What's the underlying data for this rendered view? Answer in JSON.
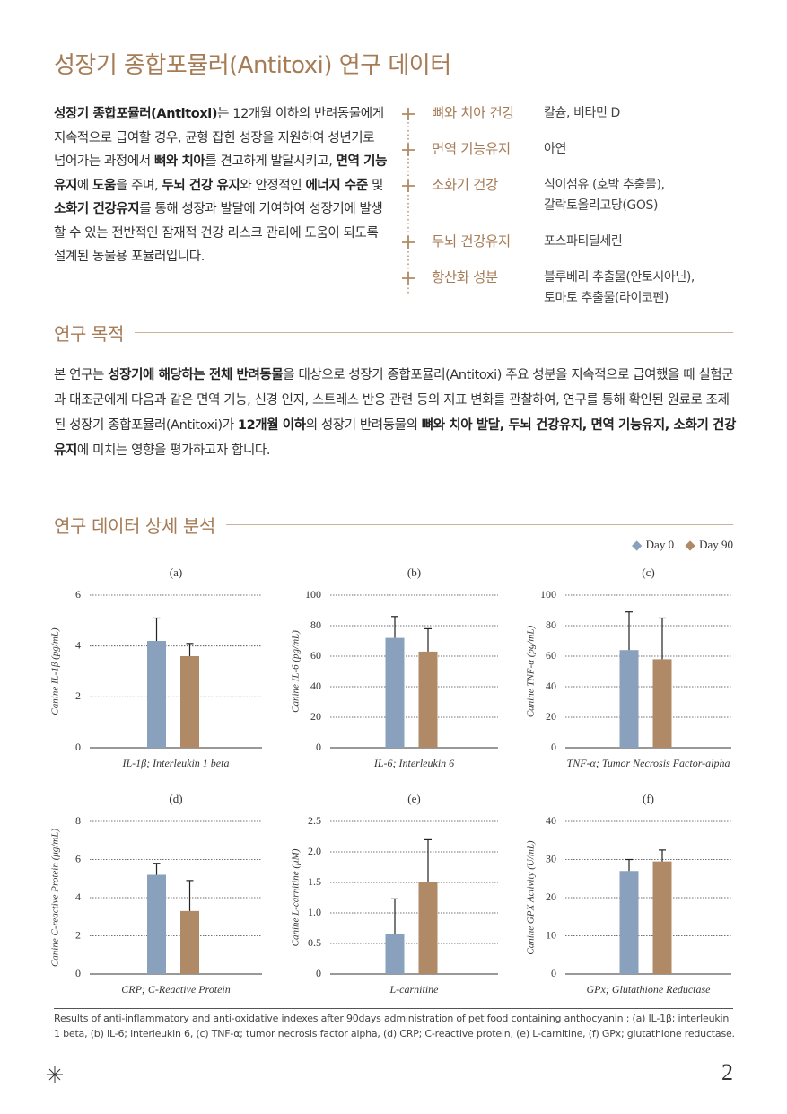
{
  "title": "성장기 종합포뮬러(Antitoxi) 연구 데이터",
  "intro": {
    "runs": [
      {
        "text": "성장기 종합포뮬러(Antitoxi)",
        "bold": true
      },
      {
        "text": "는 12개월 이하의 반려동물에게 지속적으로 급여할 경우, 균형 잡힌 성장을 지원하여 성년기로 넘어가는 과정에서 "
      },
      {
        "text": "뼈와 치아",
        "bold": true
      },
      {
        "text": "를 견고하게 발달시키고, "
      },
      {
        "text": "면역 기능유지",
        "bold": true
      },
      {
        "text": "에 "
      },
      {
        "text": "도움",
        "bold": true
      },
      {
        "text": "을 주며, "
      },
      {
        "text": "두뇌 건강 유지",
        "bold": true
      },
      {
        "text": "와 안정적인 "
      },
      {
        "text": "에너지 수준",
        "bold": true
      },
      {
        "text": " 및 "
      },
      {
        "text": "소화기 건강유지",
        "bold": true
      },
      {
        "text": "를 통해 성장과 발달에 기여하여 성장기에 발생할 수 있는 전반적인 잠재적 건강 리스크 관리에 도움이 되도록 설계된 동물용 포뮬러입니다."
      }
    ]
  },
  "nutrients": [
    {
      "label": "뼈와 치아 건강",
      "lines": [
        "칼슘, 비타민 D"
      ]
    },
    {
      "label": "면역 기능유지",
      "lines": [
        "아연"
      ]
    },
    {
      "label": "소화기 건강",
      "lines": [
        "식이섬유 (호박 추출물),",
        "갈락토올리고당(GOS)"
      ]
    },
    {
      "label": "두뇌 건강유지",
      "lines": [
        "포스파티딜세린"
      ]
    },
    {
      "label": "항산화 성분",
      "lines": [
        "블루베리 추출물(안토시아닌),",
        "토마토 추출물(라이코펜)"
      ]
    }
  ],
  "purpose": {
    "heading": "연구 목적",
    "runs": [
      {
        "text": "본 연구는 "
      },
      {
        "text": "성장기에 해당하는 전체 반려동물",
        "bold": true
      },
      {
        "text": "을 대상으로 성장기 종합포뮬러(Antitoxi) 주요 성분을 지속적으로 급여했을 때 실험군과 대조군에게 다음과 같은 면역 기능, 신경 인지, 스트레스 반응 관련 등의 지표 변화를 관찰하여, 연구를 통해 확인된 원료로 조제된 성장기 종합포뮬러(Antitoxi)가 "
      },
      {
        "text": "12개월 이하",
        "bold": true
      },
      {
        "text": "의 성장기 반려동물의 "
      },
      {
        "text": "뼈와 치아 발달, 두뇌 건강유지, 면역 기능유지, 소화기 건강유지",
        "bold": true
      },
      {
        "text": "에 미치는 영향을 평가하고자 합니다."
      }
    ]
  },
  "analysis_heading": "연구 데이터 상세 분석",
  "legend": [
    {
      "name": "Day 0",
      "color": "#8aa1bd"
    },
    {
      "name": "Day 90",
      "color": "#b08a66"
    }
  ],
  "chart_data": [
    {
      "type": "bar",
      "title": "(a)",
      "ylabel": "Canine IL-1β (pg/mL)",
      "xlabel": "IL-1β; Interleukin 1 beta",
      "ylim": [
        0,
        6
      ],
      "yticks": [
        0,
        2,
        4,
        6
      ],
      "grid": true,
      "series": [
        {
          "values": [
            4.2
          ],
          "errors": [
            0.9
          ]
        },
        {
          "values": [
            3.6
          ],
          "errors": [
            0.5
          ]
        }
      ]
    },
    {
      "type": "bar",
      "title": "(b)",
      "ylabel": "Canine IL-6 (pg/mL)",
      "xlabel": "IL-6; Interleukin 6",
      "ylim": [
        0,
        100
      ],
      "yticks": [
        0,
        20,
        40,
        60,
        80,
        100
      ],
      "grid": true,
      "series": [
        {
          "values": [
            72
          ],
          "errors": [
            14
          ]
        },
        {
          "values": [
            63
          ],
          "errors": [
            15
          ]
        }
      ]
    },
    {
      "type": "bar",
      "title": "(c)",
      "ylabel": "Canine TNF-α (pg/mL)",
      "xlabel": "TNF-α; Tumor Necrosis Factor-alpha",
      "ylim": [
        0,
        100
      ],
      "yticks": [
        0,
        20,
        40,
        60,
        80,
        100
      ],
      "grid": true,
      "series": [
        {
          "values": [
            64
          ],
          "errors": [
            25
          ]
        },
        {
          "values": [
            58
          ],
          "errors": [
            27
          ]
        }
      ]
    },
    {
      "type": "bar",
      "title": "(d)",
      "ylabel": "Canine C-reactive Protein (μg/mL)",
      "xlabel": "CRP; C-Reactive Protein",
      "ylim": [
        0,
        8
      ],
      "yticks": [
        0,
        2,
        4,
        6,
        8
      ],
      "grid": true,
      "series": [
        {
          "values": [
            5.2
          ],
          "errors": [
            0.6
          ]
        },
        {
          "values": [
            3.3
          ],
          "errors": [
            1.6
          ]
        }
      ]
    },
    {
      "type": "bar",
      "title": "(e)",
      "ylabel": "Canine L-carnitine (μM)",
      "xlabel": "L-carnitine",
      "ylim": [
        0,
        2.5
      ],
      "yticks": [
        0,
        0.5,
        {
          "value": 1,
          "label": "1.0"
        },
        1.5,
        {
          "value": 2,
          "label": "2.0"
        },
        2.5
      ],
      "grid": true,
      "series": [
        {
          "values": [
            0.65
          ],
          "errors": [
            0.58
          ]
        },
        {
          "values": [
            1.5
          ],
          "errors": [
            0.7
          ]
        }
      ]
    },
    {
      "type": "bar",
      "title": "(f)",
      "ylabel": "Canine GPX Activity (U/mL)",
      "xlabel": "GPx; Glutathione Reductase",
      "ylim": [
        0,
        40
      ],
      "yticks": [
        0,
        10,
        20,
        30,
        40
      ],
      "grid": true,
      "series": [
        {
          "values": [
            27
          ],
          "errors": [
            3
          ]
        },
        {
          "values": [
            29.5
          ],
          "errors": [
            3
          ]
        }
      ]
    }
  ],
  "caption": "Results of anti-inflammatory and anti-oxidative indexes after 90days administration of pet food containing anthocyanin : (a) IL-1β; interleukin 1 beta, (b) IL-6; interleukin 6, (c) TNF-α; tumor necrosis factor alpha, (d) CRP; C-reactive protein, (e) L-carnitine, (f) GPx; glutathione reductase.",
  "page_number": "2"
}
